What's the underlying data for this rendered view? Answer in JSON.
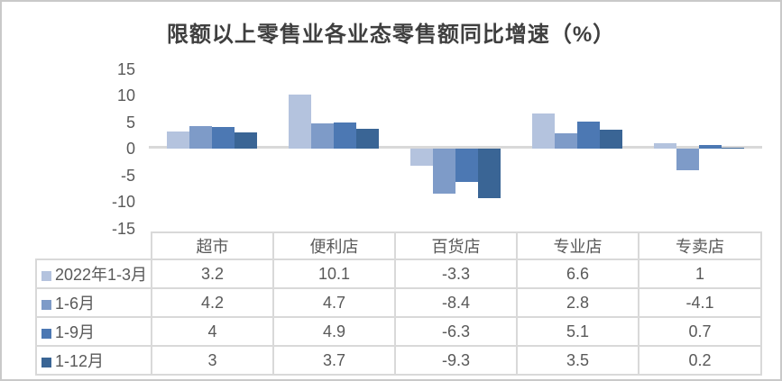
{
  "title": "限额以上零售业各业态零售额同比增速（%）",
  "colors": {
    "series": [
      "#B4C3DE",
      "#7E9BC8",
      "#4C78B3",
      "#3A6595"
    ],
    "axis_line": "#D9D9D9",
    "table_border": "#D9D9D9",
    "text": "#595959",
    "title_text": "#3F3F3F",
    "frame_border": "#C9C9C9"
  },
  "chart_data": {
    "type": "bar",
    "title": "限额以上零售业各业态零售额同比增速（%）",
    "categories": [
      "超市",
      "便利店",
      "百货店",
      "专业店",
      "专卖店"
    ],
    "series": [
      {
        "name": "2022年1-3月",
        "values": [
          3.2,
          10.1,
          -3.3,
          6.6,
          1
        ]
      },
      {
        "name": "1-6月",
        "values": [
          4.2,
          4.7,
          -8.4,
          2.8,
          -4.1
        ]
      },
      {
        "name": "1-9月",
        "values": [
          4,
          4.9,
          -6.3,
          5.1,
          0.7
        ]
      },
      {
        "name": "1-12月",
        "values": [
          3,
          3.7,
          -9.3,
          3.5,
          0.2
        ]
      }
    ],
    "y_ticks": [
      15,
      10,
      5,
      0,
      -5,
      -10,
      -15
    ],
    "ylim": [
      -15,
      15
    ],
    "xlabel": "",
    "ylabel": "",
    "grid": false,
    "legend_position": "data-table-row-labels",
    "data_table_shown": true
  }
}
